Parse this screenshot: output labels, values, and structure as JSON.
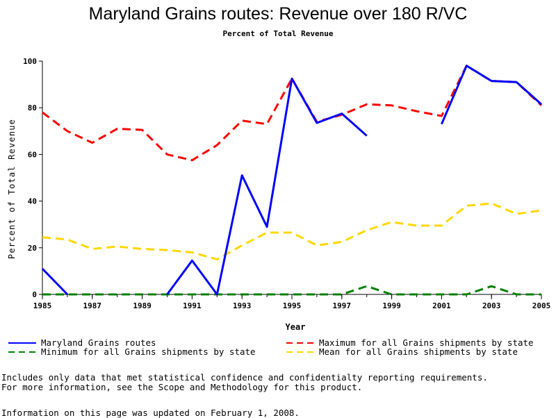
{
  "chart_data": {
    "type": "line",
    "title": "Maryland Grains routes: Revenue over 180 R/VC",
    "subtitle": "Percent of Total Revenue",
    "xlabel": "Year",
    "ylabel": "Percent of Total Revenue",
    "xlim": [
      1985,
      2005
    ],
    "ylim": [
      0,
      100
    ],
    "x_ticks": [
      "1985",
      "1987",
      "1989",
      "1991",
      "1993",
      "1995",
      "1997",
      "1999",
      "2001",
      "2003",
      "2005"
    ],
    "y_ticks": [
      "0",
      "20",
      "40",
      "60",
      "80",
      "100"
    ],
    "x": [
      1985,
      1986,
      1987,
      1988,
      1989,
      1990,
      1991,
      1992,
      1993,
      1994,
      1995,
      1996,
      1997,
      1998,
      1999,
      2000,
      2001,
      2002,
      2003,
      2004,
      2005
    ],
    "series": [
      {
        "name": "Maryland Grains routes",
        "color": "#0000ff",
        "style": "solid",
        "values": [
          11,
          0,
          null,
          null,
          null,
          0,
          14.5,
          0,
          51,
          29,
          92.5,
          73.5,
          77.5,
          68,
          null,
          null,
          73,
          98,
          91.5,
          91,
          81.5
        ]
      },
      {
        "name": "Maximum for all Grains shipments by state",
        "color": "#ff0000",
        "style": "dashed",
        "values": [
          78,
          70,
          65,
          71,
          70.5,
          60,
          57.5,
          64,
          74.5,
          73,
          92.5,
          74,
          77,
          81.5,
          81,
          78.5,
          76.5,
          98,
          91.5,
          91,
          81
        ]
      },
      {
        "name": "Minimum for all Grains shipments by state",
        "color": "#008000",
        "style": "dashed",
        "values": [
          0,
          0,
          0,
          0,
          0,
          0,
          0,
          0,
          0,
          0,
          0,
          0,
          0,
          3.5,
          0,
          0,
          0,
          0,
          3.5,
          0,
          0
        ]
      },
      {
        "name": "Mean for all Grains shipments by state",
        "color": "#ffd700",
        "style": "dashed",
        "values": [
          24.5,
          23.5,
          19.5,
          20.5,
          19.5,
          19,
          18,
          15,
          21,
          26.5,
          26.5,
          21,
          22.5,
          27.5,
          31,
          29.5,
          29.5,
          38,
          39,
          34.5,
          36
        ]
      }
    ],
    "legend_placement": "bottom"
  },
  "notes": {
    "line1": "Includes only data that met statistical confidence and confidentialty reporting requirements.",
    "line2": "For more information, see the Scope and Methodology for this product.",
    "line3": "Information on this page was updated on February 1, 2008."
  }
}
